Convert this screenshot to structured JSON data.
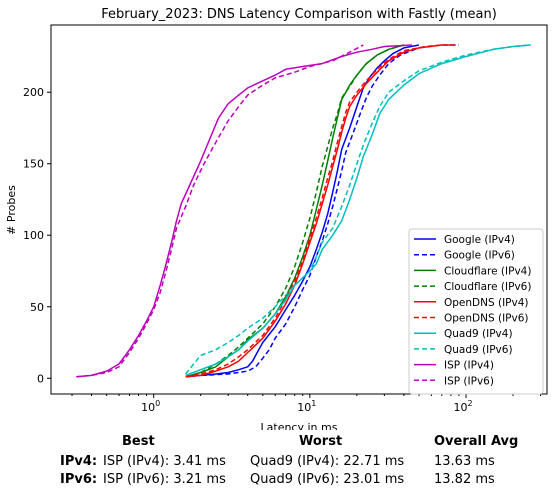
{
  "chart_data": {
    "type": "line",
    "title": "February_2023: DNS Latency Comparison with Fastly (mean)",
    "xlabel": "Latency in ms",
    "ylabel": "# Probes",
    "xscale": "log",
    "xlim": [
      0.22,
      330
    ],
    "ylim": [
      -11,
      247
    ],
    "x_ticks": [
      {
        "value": 1,
        "label": "10^0"
      },
      {
        "value": 10,
        "label": "10^1"
      },
      {
        "value": 100,
        "label": "10^2"
      }
    ],
    "y_ticks": [
      0,
      50,
      100,
      150,
      200
    ],
    "grid": false,
    "legend_position": "lower right",
    "series": [
      {
        "name": "Google (IPv4)",
        "color": "#0000ff",
        "style": "solid",
        "points": [
          [
            1.6,
            1
          ],
          [
            2.0,
            2
          ],
          [
            2.5,
            3
          ],
          [
            3.0,
            4
          ],
          [
            3.5,
            6
          ],
          [
            4.0,
            8
          ],
          [
            4.3,
            12
          ],
          [
            4.6,
            18
          ],
          [
            5.0,
            25
          ],
          [
            6.0,
            36
          ],
          [
            7.0,
            48
          ],
          [
            8.0,
            58
          ],
          [
            9.0,
            68
          ],
          [
            10.0,
            78
          ],
          [
            11.0,
            90
          ],
          [
            12.0,
            102
          ],
          [
            13.0,
            115
          ],
          [
            14.0,
            130
          ],
          [
            15.0,
            145
          ],
          [
            16.0,
            160
          ],
          [
            18.0,
            175
          ],
          [
            20.0,
            190
          ],
          [
            22.0,
            203
          ],
          [
            24.0,
            210
          ],
          [
            27.0,
            217
          ],
          [
            30.0,
            222
          ],
          [
            34.0,
            227
          ],
          [
            40.0,
            231
          ],
          [
            50.0,
            233
          ]
        ]
      },
      {
        "name": "Google (IPv6)",
        "color": "#0000ff",
        "style": "dashed",
        "points": [
          [
            1.6,
            1
          ],
          [
            2.0,
            2
          ],
          [
            3.0,
            3
          ],
          [
            4.0,
            5
          ],
          [
            4.5,
            8
          ],
          [
            5.0,
            14
          ],
          [
            5.5,
            20
          ],
          [
            6.0,
            28
          ],
          [
            7.0,
            38
          ],
          [
            8.0,
            50
          ],
          [
            9.0,
            62
          ],
          [
            10.0,
            72
          ],
          [
            11.0,
            85
          ],
          [
            12.0,
            96
          ],
          [
            13.0,
            108
          ],
          [
            14.0,
            120
          ],
          [
            15.0,
            133
          ],
          [
            16.0,
            145
          ],
          [
            17.0,
            158
          ],
          [
            19.0,
            172
          ],
          [
            21.0,
            185
          ],
          [
            23.0,
            196
          ],
          [
            25.0,
            204
          ],
          [
            28.0,
            212
          ],
          [
            32.0,
            220
          ],
          [
            38.0,
            226
          ],
          [
            50.0,
            231
          ],
          [
            70.0,
            233
          ],
          [
            90.0,
            233
          ]
        ]
      },
      {
        "name": "Cloudflare (IPv4)",
        "color": "#008000",
        "style": "solid",
        "points": [
          [
            1.6,
            1
          ],
          [
            2.0,
            4
          ],
          [
            2.5,
            8
          ],
          [
            3.0,
            15
          ],
          [
            3.5,
            20
          ],
          [
            4.0,
            27
          ],
          [
            5.0,
            35
          ],
          [
            6.0,
            45
          ],
          [
            7.0,
            57
          ],
          [
            8.0,
            70
          ],
          [
            9.0,
            85
          ],
          [
            10.0,
            100
          ],
          [
            11.0,
            118
          ],
          [
            12.0,
            135
          ],
          [
            13.0,
            152
          ],
          [
            14.0,
            168
          ],
          [
            15.0,
            182
          ],
          [
            16.0,
            195
          ],
          [
            17.0,
            200
          ],
          [
            18.0,
            205
          ],
          [
            20.0,
            212
          ],
          [
            23.0,
            220
          ],
          [
            27.0,
            226
          ],
          [
            32.0,
            230
          ],
          [
            40.0,
            233
          ]
        ]
      },
      {
        "name": "Cloudflare (IPv6)",
        "color": "#008000",
        "style": "dashed",
        "points": [
          [
            1.6,
            1
          ],
          [
            2.0,
            4
          ],
          [
            2.5,
            10
          ],
          [
            3.0,
            16
          ],
          [
            3.5,
            22
          ],
          [
            4.0,
            28
          ],
          [
            5.0,
            38
          ],
          [
            6.0,
            50
          ],
          [
            7.0,
            63
          ],
          [
            8.0,
            78
          ],
          [
            9.0,
            95
          ],
          [
            10.0,
            112
          ],
          [
            11.0,
            130
          ],
          [
            12.0,
            148
          ],
          [
            13.0,
            162
          ],
          [
            14.0,
            175
          ],
          [
            15.0,
            185
          ],
          [
            16.0,
            196
          ],
          [
            18.0,
            204
          ],
          [
            20.0,
            212
          ],
          [
            23.0,
            220
          ],
          [
            27.0,
            226
          ],
          [
            32.0,
            230
          ],
          [
            40.0,
            233
          ]
        ]
      },
      {
        "name": "OpenDNS (IPv4)",
        "color": "#ff0000",
        "style": "solid",
        "points": [
          [
            1.6,
            1
          ],
          [
            2.0,
            2
          ],
          [
            2.5,
            5
          ],
          [
            3.0,
            8
          ],
          [
            3.5,
            12
          ],
          [
            4.0,
            18
          ],
          [
            5.0,
            28
          ],
          [
            6.0,
            40
          ],
          [
            7.0,
            52
          ],
          [
            8.0,
            65
          ],
          [
            9.0,
            80
          ],
          [
            10.0,
            95
          ],
          [
            11.0,
            108
          ],
          [
            12.0,
            122
          ],
          [
            13.0,
            135
          ],
          [
            14.0,
            148
          ],
          [
            15.0,
            160
          ],
          [
            16.0,
            172
          ],
          [
            17.0,
            182
          ],
          [
            18.0,
            190
          ],
          [
            20.0,
            198
          ],
          [
            23.0,
            206
          ],
          [
            27.0,
            214
          ],
          [
            32.0,
            222
          ],
          [
            40.0,
            228
          ],
          [
            50.0,
            231
          ],
          [
            70.0,
            233
          ],
          [
            85.0,
            233
          ]
        ]
      },
      {
        "name": "OpenDNS (IPv6)",
        "color": "#ff0000",
        "style": "dashed",
        "points": [
          [
            1.6,
            1
          ],
          [
            2.0,
            3
          ],
          [
            2.5,
            6
          ],
          [
            3.0,
            10
          ],
          [
            3.5,
            15
          ],
          [
            4.0,
            20
          ],
          [
            5.0,
            30
          ],
          [
            6.0,
            42
          ],
          [
            7.0,
            55
          ],
          [
            8.0,
            68
          ],
          [
            9.0,
            82
          ],
          [
            10.0,
            98
          ],
          [
            11.0,
            112
          ],
          [
            12.0,
            126
          ],
          [
            13.0,
            140
          ],
          [
            14.0,
            152
          ],
          [
            15.0,
            165
          ],
          [
            16.0,
            176
          ],
          [
            17.0,
            186
          ],
          [
            18.0,
            193
          ],
          [
            20.0,
            200
          ],
          [
            23.0,
            208
          ],
          [
            27.0,
            216
          ],
          [
            32.0,
            223
          ],
          [
            40.0,
            229
          ],
          [
            55.0,
            232
          ],
          [
            70.0,
            233
          ]
        ]
      },
      {
        "name": "Quad9 (IPv4)",
        "color": "#00bfbf",
        "style": "solid",
        "points": [
          [
            1.6,
            2
          ],
          [
            2.0,
            6
          ],
          [
            2.5,
            10
          ],
          [
            3.0,
            15
          ],
          [
            3.5,
            20
          ],
          [
            4.0,
            26
          ],
          [
            5.0,
            35
          ],
          [
            6.0,
            45
          ],
          [
            7.0,
            55
          ],
          [
            8.0,
            65
          ],
          [
            10.0,
            75
          ],
          [
            11.0,
            80
          ],
          [
            12.0,
            90
          ],
          [
            14.0,
            100
          ],
          [
            16.0,
            110
          ],
          [
            18.0,
            125
          ],
          [
            20.0,
            140
          ],
          [
            22.0,
            155
          ],
          [
            25.0,
            170
          ],
          [
            28.0,
            185
          ],
          [
            32.0,
            195
          ],
          [
            40.0,
            205
          ],
          [
            50.0,
            213
          ],
          [
            70.0,
            220
          ],
          [
            100.0,
            225
          ],
          [
            150.0,
            230
          ],
          [
            200.0,
            232
          ],
          [
            260.0,
            233
          ]
        ]
      },
      {
        "name": "Quad9 (IPv6)",
        "color": "#00bfbf",
        "style": "dashed",
        "points": [
          [
            1.6,
            3
          ],
          [
            2.0,
            16
          ],
          [
            2.5,
            20
          ],
          [
            3.0,
            25
          ],
          [
            3.5,
            30
          ],
          [
            4.0,
            35
          ],
          [
            5.0,
            42
          ],
          [
            6.0,
            50
          ],
          [
            7.0,
            58
          ],
          [
            8.0,
            65
          ],
          [
            10.0,
            75
          ],
          [
            11.0,
            85
          ],
          [
            12.0,
            95
          ],
          [
            14.0,
            105
          ],
          [
            16.0,
            120
          ],
          [
            18.0,
            135
          ],
          [
            20.0,
            150
          ],
          [
            22.0,
            163
          ],
          [
            25.0,
            178
          ],
          [
            28.0,
            190
          ],
          [
            32.0,
            200
          ],
          [
            40.0,
            208
          ],
          [
            50.0,
            215
          ],
          [
            70.0,
            221
          ],
          [
            100.0,
            226
          ],
          [
            150.0,
            230
          ],
          [
            200.0,
            232
          ],
          [
            260.0,
            233
          ]
        ]
      },
      {
        "name": "ISP (IPv4)",
        "color": "#bf00bf",
        "style": "solid",
        "points": [
          [
            0.32,
            1
          ],
          [
            0.4,
            2
          ],
          [
            0.5,
            5
          ],
          [
            0.6,
            10
          ],
          [
            0.7,
            20
          ],
          [
            0.8,
            30
          ],
          [
            0.9,
            40
          ],
          [
            1.0,
            50
          ],
          [
            1.1,
            65
          ],
          [
            1.2,
            80
          ],
          [
            1.3,
            95
          ],
          [
            1.4,
            110
          ],
          [
            1.5,
            122
          ],
          [
            1.7,
            135
          ],
          [
            2.0,
            152
          ],
          [
            2.3,
            168
          ],
          [
            2.6,
            182
          ],
          [
            3.0,
            192
          ],
          [
            3.5,
            198
          ],
          [
            4.0,
            203
          ],
          [
            5.0,
            208
          ],
          [
            6.0,
            212
          ],
          [
            7.0,
            216
          ],
          [
            9.0,
            218
          ],
          [
            12.0,
            220
          ],
          [
            16.0,
            225
          ],
          [
            20.0,
            228
          ],
          [
            25.0,
            230
          ],
          [
            30.0,
            232
          ],
          [
            45.0,
            233
          ]
        ]
      },
      {
        "name": "ISP (IPv6)",
        "color": "#bf00bf",
        "style": "dashed",
        "points": [
          [
            0.32,
            1
          ],
          [
            0.4,
            2
          ],
          [
            0.5,
            4
          ],
          [
            0.6,
            8
          ],
          [
            0.7,
            18
          ],
          [
            0.8,
            28
          ],
          [
            0.9,
            38
          ],
          [
            1.0,
            48
          ],
          [
            1.1,
            60
          ],
          [
            1.2,
            75
          ],
          [
            1.3,
            90
          ],
          [
            1.4,
            105
          ],
          [
            1.6,
            120
          ],
          [
            1.8,
            135
          ],
          [
            2.1,
            150
          ],
          [
            2.5,
            165
          ],
          [
            3.0,
            180
          ],
          [
            3.5,
            190
          ],
          [
            4.0,
            198
          ],
          [
            5.0,
            205
          ],
          [
            6.0,
            210
          ],
          [
            8.0,
            214
          ],
          [
            10.0,
            218
          ],
          [
            14.0,
            222
          ],
          [
            18.0,
            228
          ],
          [
            22.0,
            233
          ]
        ]
      }
    ]
  },
  "stats": {
    "headers": {
      "best": "Best",
      "worst": "Worst",
      "avg": "Overall Avg"
    },
    "rows": [
      {
        "label": "IPv4:",
        "best": "ISP (IPv4): 3.41 ms",
        "worst": "Quad9 (IPv4): 22.71 ms",
        "avg": "13.63 ms"
      },
      {
        "label": "IPv6:",
        "best": "ISP (IPv6): 3.21 ms",
        "worst": "Quad9 (IPv6): 23.01 ms",
        "avg": "13.82 ms"
      }
    ]
  }
}
